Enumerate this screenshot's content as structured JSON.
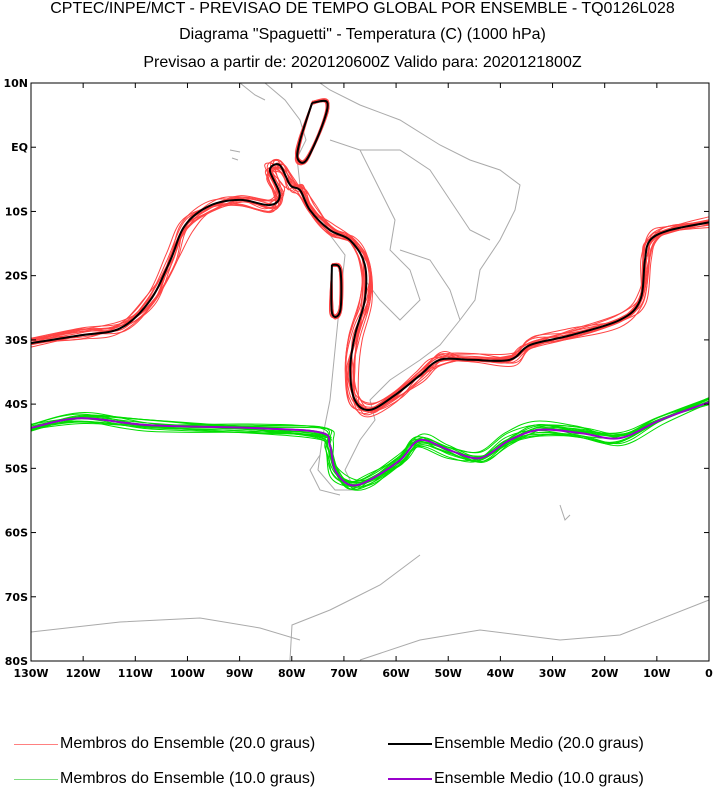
{
  "header": {
    "line1": "CPTEC/INPE/MCT - PREVISAO DE TEMPO GLOBAL POR ENSEMBLE - TQ0126L028",
    "line2": "Diagrama \"Spaguetti\" - Temperatura (C) (1000 hPa)",
    "line3": "Previsao a partir de: 2020120600Z  Valido para: 2020121800Z"
  },
  "colors": {
    "members_20": "#ff4444",
    "mean_20": "#000000",
    "members_10": "#00dd00",
    "mean_10": "#9900cc",
    "coast": "#aaaaaa"
  },
  "map": {
    "lon_range": [
      -130,
      0
    ],
    "lat_range": [
      -80,
      10
    ],
    "lat_labels": [
      "10N",
      "EQ",
      "10S",
      "20S",
      "30S",
      "40S",
      "50S",
      "60S",
      "70S",
      "80S"
    ],
    "lon_labels": [
      "130W",
      "120W",
      "110W",
      "100W",
      "90W",
      "80W",
      "70W",
      "60W",
      "50W",
      "40W",
      "30W",
      "20W",
      "10W",
      "0"
    ],
    "members_per_level": 15,
    "contours": {
      "mean_20": [
        [
          -130,
          -30.5
        ],
        [
          -120.6,
          -29.3
        ],
        [
          -112.9,
          -28.2
        ],
        [
          -107.2,
          -23.9
        ],
        [
          -103.3,
          -17.6
        ],
        [
          -100.5,
          -12.2
        ],
        [
          -95.7,
          -9.1
        ],
        [
          -89.9,
          -8.2
        ],
        [
          -84.2,
          -9.0
        ],
        [
          -82.3,
          -7.4
        ],
        [
          -84.2,
          -3.6
        ],
        [
          -82.3,
          -2.8
        ],
        [
          -80.3,
          -5.9
        ],
        [
          -78.4,
          -6.7
        ],
        [
          -76.5,
          -9.8
        ],
        [
          -72.7,
          -12.9
        ],
        [
          -68.8,
          -14.5
        ],
        [
          -66.0,
          -18.3
        ],
        [
          -66.0,
          -23.8
        ],
        [
          -67.9,
          -29.3
        ],
        [
          -68.8,
          -34.7
        ],
        [
          -67.9,
          -39.4
        ],
        [
          -65.0,
          -40.9
        ],
        [
          -60.2,
          -38.6
        ],
        [
          -55.4,
          -35.5
        ],
        [
          -51.6,
          -33.1
        ],
        [
          -45.8,
          -33.1
        ],
        [
          -38.2,
          -33.1
        ],
        [
          -34.3,
          -30.8
        ],
        [
          -26.6,
          -29.3
        ],
        [
          -17.1,
          -26.9
        ],
        [
          -13.2,
          -23.8
        ],
        [
          -12.3,
          -17.6
        ],
        [
          -11.3,
          -14.5
        ],
        [
          -7.5,
          -12.9
        ],
        [
          0,
          -11.7
        ]
      ],
      "mean_20_loops": [
        [
          [
            -76.1,
            6.9
          ],
          [
            -73.2,
            7.0
          ],
          [
            -74.1,
            3.5
          ],
          [
            -77.2,
            -2.0
          ],
          [
            -78.9,
            -1.7
          ],
          [
            -78.4,
            1.1
          ],
          [
            -76.1,
            6.9
          ]
        ],
        [
          [
            -72.3,
            -18.3
          ],
          [
            -70.7,
            -19.1
          ],
          [
            -70.7,
            -25.4
          ],
          [
            -72.3,
            -25.7
          ],
          [
            -72.3,
            -18.3
          ]
        ]
      ],
      "mean_10": [
        [
          -130,
          -43.7
        ],
        [
          -120.6,
          -42.2
        ],
        [
          -107.2,
          -43.3
        ],
        [
          -88.0,
          -43.7
        ],
        [
          -74.6,
          -44.4
        ],
        [
          -72.7,
          -46.4
        ],
        [
          -71.7,
          -50.3
        ],
        [
          -68.8,
          -52.6
        ],
        [
          -65.0,
          -51.8
        ],
        [
          -59.2,
          -48.7
        ],
        [
          -55.4,
          -45.6
        ],
        [
          -49.7,
          -47.2
        ],
        [
          -43.9,
          -48.4
        ],
        [
          -38.2,
          -45.6
        ],
        [
          -32.4,
          -44.0
        ],
        [
          -24.7,
          -44.5
        ],
        [
          -17.1,
          -45.3
        ],
        [
          -9.4,
          -42.5
        ],
        [
          0,
          -39.7
        ]
      ]
    }
  },
  "legend": [
    {
      "label": "Membros do Ensemble (20.0 graus)",
      "color": "#ff8080"
    },
    {
      "label": "Ensemble Medio (20.0 graus)",
      "color": "#000000"
    },
    {
      "label": "Membros do Ensemble (10.0 graus)",
      "color": "#80dd80"
    },
    {
      "label": "Ensemble Medio (10.0 graus)",
      "color": "#9900cc"
    }
  ]
}
